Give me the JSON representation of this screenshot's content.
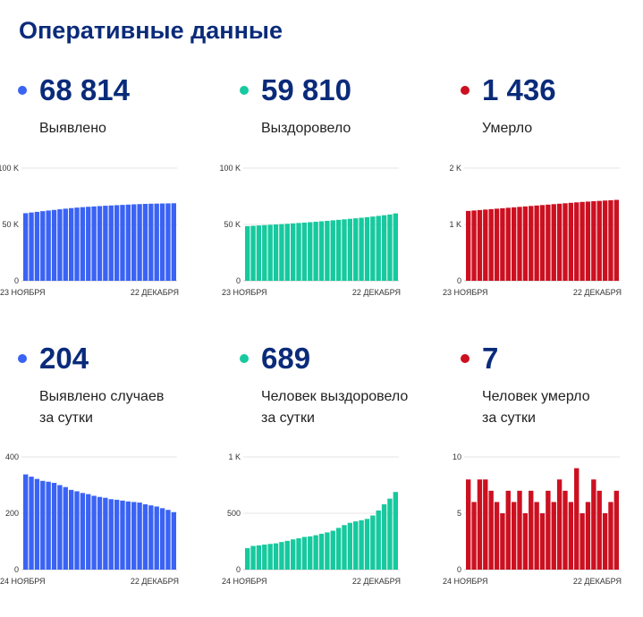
{
  "page_title": "Оперативные данные",
  "chart_data": [
    {
      "type": "bar",
      "value": "68 814",
      "label_lines": [
        "Выявлено"
      ],
      "color": "#3a63f4",
      "yticks": [
        {
          "v": 0,
          "label": "0"
        },
        {
          "v": 50000,
          "label": "50 K"
        },
        {
          "v": 100000,
          "label": "100 K"
        }
      ],
      "ylim": [
        0,
        100000
      ],
      "x_labels": [
        "23 НОЯБРЯ",
        "22 ДЕКАБРЯ"
      ],
      "values": [
        60000,
        60600,
        61200,
        61800,
        62350,
        62900,
        63450,
        64000,
        64500,
        64950,
        65350,
        65700,
        66000,
        66300,
        66600,
        66850,
        67100,
        67350,
        67600,
        67850,
        68050,
        68250,
        68400,
        68500,
        68600,
        68700,
        68814
      ]
    },
    {
      "type": "bar",
      "value": "59 810",
      "label_lines": [
        "Выздоровело"
      ],
      "color": "#16c99e",
      "yticks": [
        {
          "v": 0,
          "label": "0"
        },
        {
          "v": 50000,
          "label": "50 K"
        },
        {
          "v": 100000,
          "label": "100 K"
        }
      ],
      "ylim": [
        0,
        100000
      ],
      "x_labels": [
        "23 НОЯБРЯ",
        "22 ДЕКАБРЯ"
      ],
      "values": [
        48500,
        48800,
        49100,
        49400,
        49700,
        50000,
        50300,
        50600,
        50950,
        51300,
        51650,
        52000,
        52400,
        52800,
        53200,
        53650,
        54100,
        54550,
        55000,
        55450,
        55950,
        56450,
        57000,
        57600,
        58200,
        58800,
        59810
      ]
    },
    {
      "type": "bar",
      "value": "1 436",
      "label_lines": [
        "Умерло"
      ],
      "color": "#cc1020",
      "yticks": [
        {
          "v": 0,
          "label": "0"
        },
        {
          "v": 1000,
          "label": "1 K"
        },
        {
          "v": 2000,
          "label": "2 K"
        }
      ],
      "ylim": [
        0,
        2000
      ],
      "x_labels": [
        "23 НОЯБРЯ",
        "22 ДЕКАБРЯ"
      ],
      "values": [
        1240,
        1248,
        1256,
        1264,
        1272,
        1280,
        1288,
        1296,
        1304,
        1312,
        1320,
        1328,
        1336,
        1344,
        1352,
        1360,
        1368,
        1376,
        1384,
        1392,
        1400,
        1406,
        1412,
        1418,
        1424,
        1430,
        1436
      ]
    },
    {
      "type": "bar",
      "value": "204",
      "label_lines": [
        "Выявлено случаев",
        "за сутки"
      ],
      "color": "#3a63f4",
      "yticks": [
        {
          "v": 0,
          "label": "0"
        },
        {
          "v": 200,
          "label": "200"
        },
        {
          "v": 400,
          "label": "400"
        }
      ],
      "ylim": [
        0,
        400
      ],
      "x_labels": [
        "24 НОЯБРЯ",
        "22 ДЕКАБРЯ"
      ],
      "values": [
        338,
        330,
        322,
        315,
        312,
        308,
        300,
        293,
        283,
        278,
        272,
        268,
        262,
        258,
        255,
        250,
        248,
        245,
        242,
        240,
        238,
        232,
        228,
        224,
        218,
        212,
        204
      ]
    },
    {
      "type": "bar",
      "value": "689",
      "label_lines": [
        "Человек выздоровело",
        "за сутки"
      ],
      "color": "#16c99e",
      "yticks": [
        {
          "v": 0,
          "label": "0"
        },
        {
          "v": 500,
          "label": "500"
        },
        {
          "v": 1000,
          "label": "1 K"
        }
      ],
      "ylim": [
        0,
        1000
      ],
      "x_labels": [
        "24 НОЯБРЯ",
        "22 ДЕКАБРЯ"
      ],
      "values": [
        190,
        210,
        215,
        222,
        228,
        233,
        245,
        255,
        268,
        278,
        290,
        295,
        305,
        318,
        330,
        345,
        370,
        395,
        415,
        428,
        438,
        450,
        480,
        525,
        580,
        630,
        689
      ]
    },
    {
      "type": "bar",
      "value": "7",
      "label_lines": [
        "Человек умерло",
        "за сутки"
      ],
      "color": "#cc1020",
      "yticks": [
        {
          "v": 0,
          "label": "0"
        },
        {
          "v": 5,
          "label": "5"
        },
        {
          "v": 10,
          "label": "10"
        }
      ],
      "ylim": [
        0,
        10
      ],
      "x_labels": [
        "24 НОЯБРЯ",
        "22 ДЕКАБРЯ"
      ],
      "values": [
        8,
        6,
        8,
        8,
        7,
        6,
        5,
        7,
        6,
        7,
        5,
        7,
        6,
        5,
        7,
        6,
        8,
        7,
        6,
        9,
        5,
        6,
        8,
        7,
        5,
        6,
        7
      ]
    }
  ]
}
